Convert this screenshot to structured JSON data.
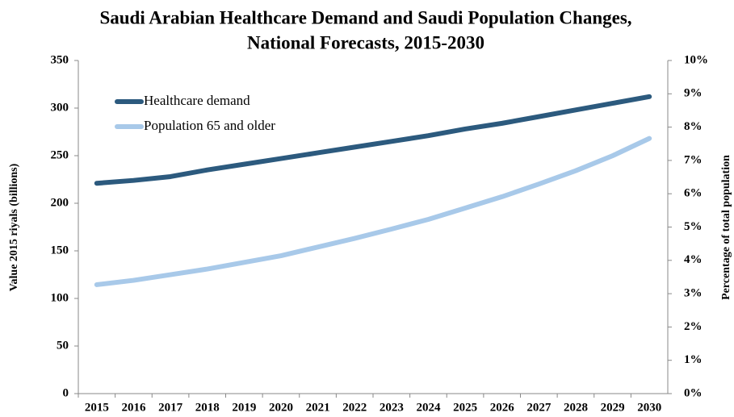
{
  "chart_data": {
    "type": "line",
    "title": "Saudi Arabian Healthcare Demand and Saudi Population Changes,",
    "subtitle": "National Forecasts, 2015-2030",
    "y_label": "Value 2015 riyals (billions)",
    "y2_label": "Percentage of total population",
    "categories": [
      "2015",
      "2016",
      "2017",
      "2018",
      "2019",
      "2020",
      "2021",
      "2022",
      "2023",
      "2024",
      "2025",
      "2026",
      "2027",
      "2028",
      "2029",
      "2030"
    ],
    "series": [
      {
        "name": "Healthcare demand",
        "color": "#2c5a7e",
        "axis": "y",
        "values": [
          221,
          224,
          228,
          235,
          241,
          247,
          253,
          259,
          265,
          271,
          278,
          284,
          291,
          298,
          305,
          312
        ]
      },
      {
        "name": "Population 65 and older",
        "color": "#a8c9e9",
        "axis": "y2",
        "values": [
          3.27,
          3.4,
          3.57,
          3.74,
          3.94,
          4.14,
          4.4,
          4.66,
          4.94,
          5.23,
          5.57,
          5.91,
          6.29,
          6.69,
          7.14,
          7.66
        ]
      }
    ],
    "ylim": [
      0,
      350
    ],
    "yticks": [
      0,
      50,
      100,
      150,
      200,
      250,
      300,
      350
    ],
    "y2lim": [
      0,
      10
    ],
    "y2ticks": [
      {
        "value": 0,
        "label": "0%"
      },
      {
        "value": 1,
        "label": "1%"
      },
      {
        "value": 2,
        "label": "2%"
      },
      {
        "value": 3,
        "label": "3%"
      },
      {
        "value": 4,
        "label": "4%"
      },
      {
        "value": 5,
        "label": "5%"
      },
      {
        "value": 6,
        "label": "6%"
      },
      {
        "value": 7,
        "label": "7%"
      },
      {
        "value": 8,
        "label": "8%"
      },
      {
        "value": 9,
        "label": "9%"
      },
      {
        "value": 10,
        "label": "10%"
      }
    ],
    "legend": "top-left",
    "grid": false
  }
}
